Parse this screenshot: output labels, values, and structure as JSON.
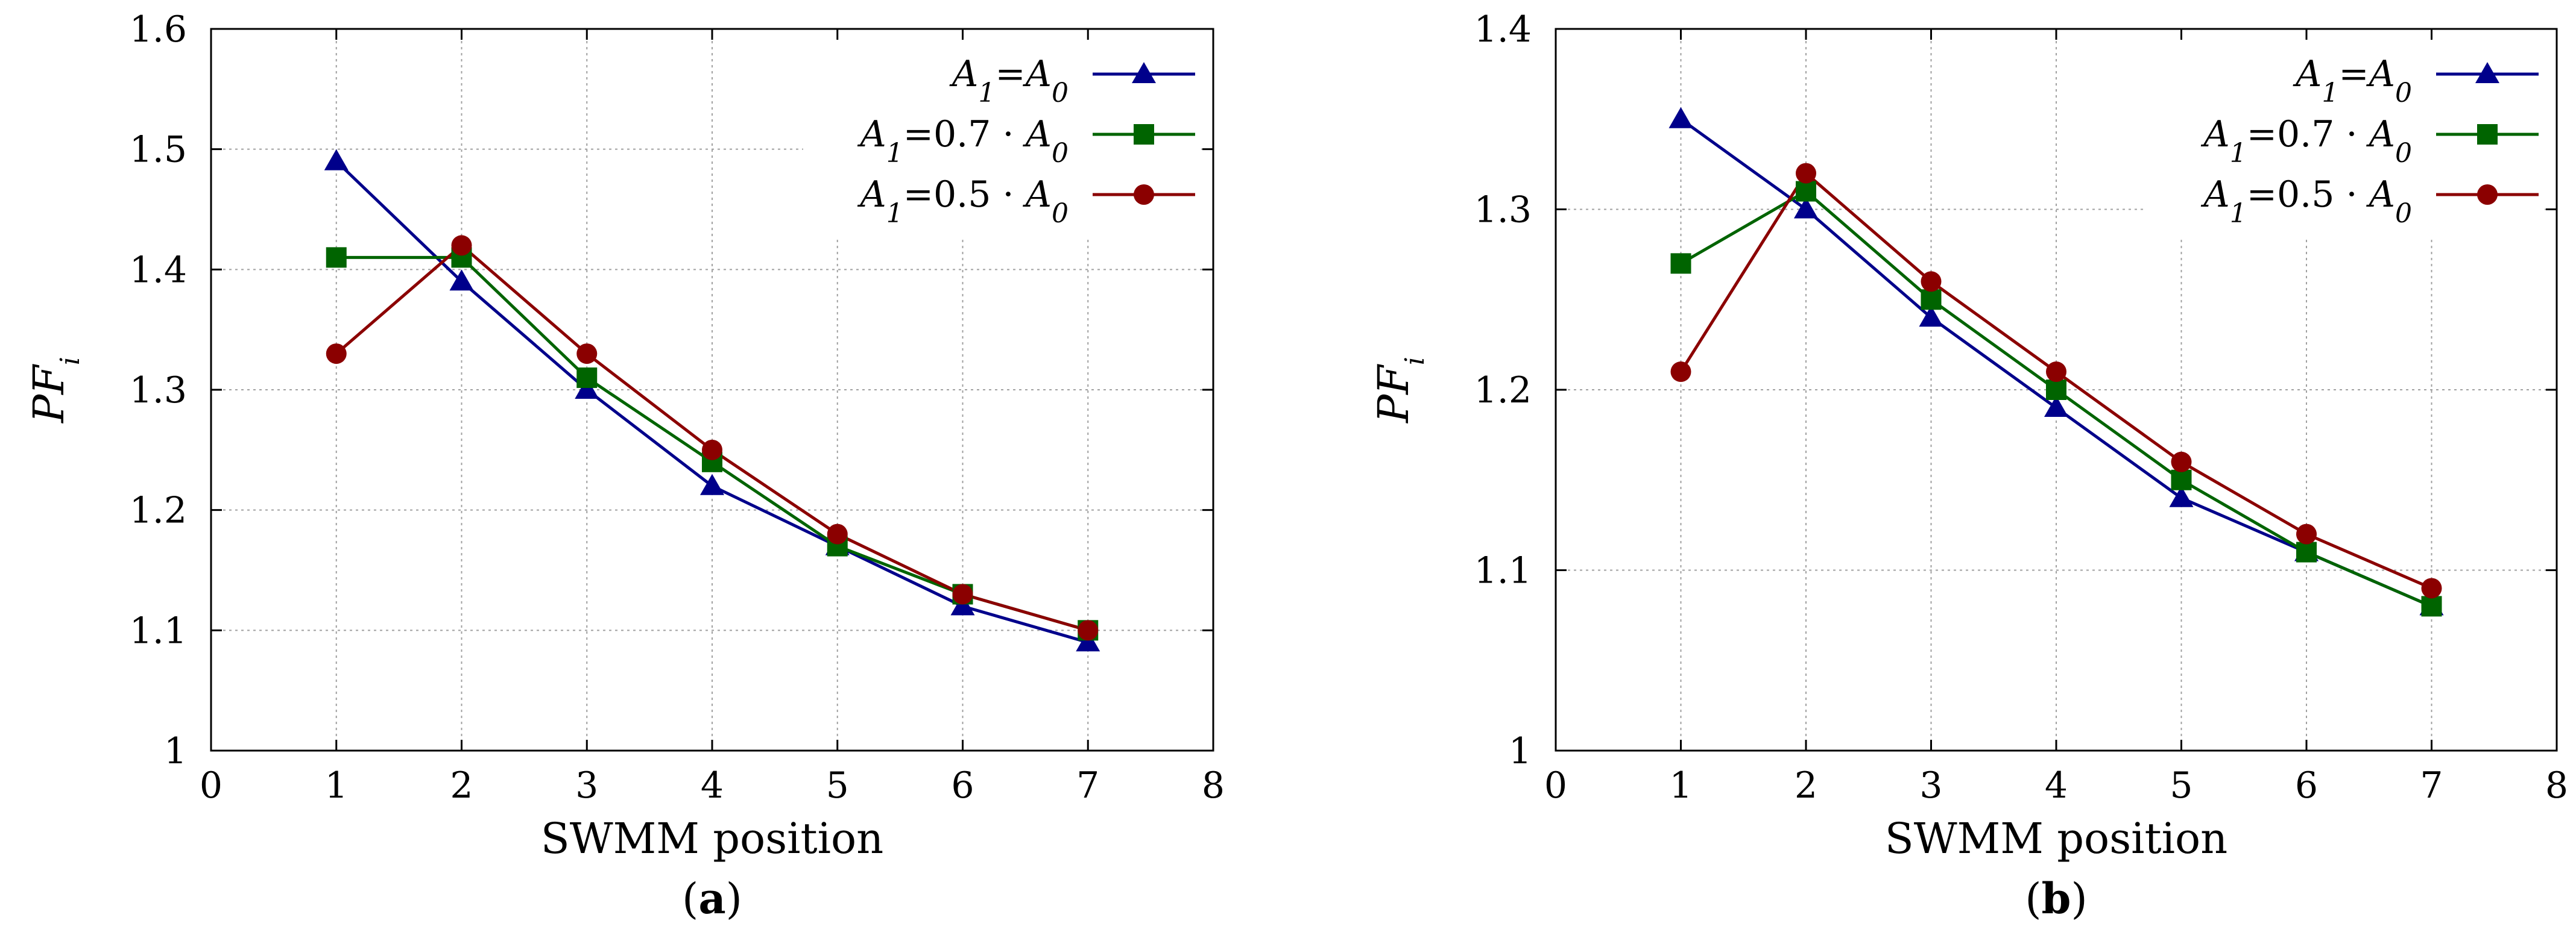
{
  "figure": {
    "panels": [
      "(a)",
      "(b)"
    ]
  },
  "colors": {
    "blue": "#00008b",
    "green": "#006400",
    "red": "#8b0000",
    "grid": "#a0a0a0",
    "axis": "#000000"
  },
  "chart_data": [
    {
      "type": "line",
      "panel_label": "(a)",
      "xlabel": "SWMM position",
      "ylabel": "PF_i",
      "xlim": [
        0,
        8
      ],
      "ylim": [
        1,
        1.6
      ],
      "xticks": [
        0,
        1,
        2,
        3,
        4,
        5,
        6,
        7,
        8
      ],
      "yticks": [
        1,
        1.1,
        1.2,
        1.3,
        1.4,
        1.5,
        1.6
      ],
      "xtick_labels": [
        "0",
        "1",
        "2",
        "3",
        "4",
        "5",
        "6",
        "7",
        "8"
      ],
      "ytick_labels": [
        "1",
        "1.1",
        "1.2",
        "1.3",
        "1.4",
        "1.5",
        "1.6"
      ],
      "grid": true,
      "legend_position": "top-right",
      "series": [
        {
          "name": "A1=A0",
          "marker": "triangle",
          "color": "#00008b",
          "x": [
            1,
            2,
            3,
            4,
            5,
            6,
            7
          ],
          "values": [
            1.49,
            1.39,
            1.3,
            1.22,
            1.17,
            1.12,
            1.09
          ]
        },
        {
          "name": "A1=0.7 · A0",
          "marker": "square",
          "color": "#006400",
          "x": [
            1,
            2,
            3,
            4,
            5,
            6,
            7
          ],
          "values": [
            1.41,
            1.41,
            1.31,
            1.24,
            1.17,
            1.13,
            1.1
          ]
        },
        {
          "name": "A1=0.5 · A0",
          "marker": "circle",
          "color": "#8b0000",
          "x": [
            1,
            2,
            3,
            4,
            5,
            6,
            7
          ],
          "values": [
            1.33,
            1.42,
            1.33,
            1.25,
            1.18,
            1.13,
            1.1
          ]
        }
      ]
    },
    {
      "type": "line",
      "panel_label": "(b)",
      "xlabel": "SWMM position",
      "ylabel": "PF_i",
      "xlim": [
        0,
        8
      ],
      "ylim": [
        1,
        1.4
      ],
      "xticks": [
        0,
        1,
        2,
        3,
        4,
        5,
        6,
        7,
        8
      ],
      "yticks": [
        1,
        1.1,
        1.2,
        1.3,
        1.4
      ],
      "xtick_labels": [
        "0",
        "1",
        "2",
        "3",
        "4",
        "5",
        "6",
        "7",
        "8"
      ],
      "ytick_labels": [
        "1",
        "1.1",
        "1.2",
        "1.3",
        "1.4"
      ],
      "grid": true,
      "legend_position": "top-right",
      "series": [
        {
          "name": "A1=A0",
          "marker": "triangle",
          "color": "#00008b",
          "x": [
            1,
            2,
            3,
            4,
            5,
            6,
            7
          ],
          "values": [
            1.35,
            1.3,
            1.24,
            1.19,
            1.14,
            1.11,
            1.08
          ]
        },
        {
          "name": "A1=0.7 · A0",
          "marker": "square",
          "color": "#006400",
          "x": [
            1,
            2,
            3,
            4,
            5,
            6,
            7
          ],
          "values": [
            1.27,
            1.31,
            1.25,
            1.2,
            1.15,
            1.11,
            1.08
          ]
        },
        {
          "name": "A1=0.5 · A0",
          "marker": "circle",
          "color": "#8b0000",
          "x": [
            1,
            2,
            3,
            4,
            5,
            6,
            7
          ],
          "values": [
            1.21,
            1.32,
            1.26,
            1.21,
            1.16,
            1.12,
            1.09
          ]
        }
      ]
    }
  ]
}
